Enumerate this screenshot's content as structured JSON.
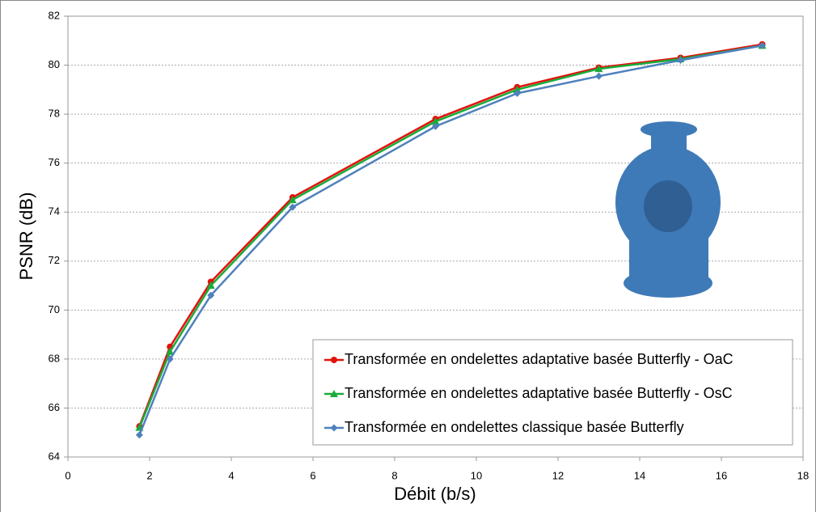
{
  "chart_data": {
    "type": "line",
    "x_label": "Débit (b/s)",
    "y_label": "PSNR (dB)",
    "x": [
      1.75,
      2.5,
      3.5,
      5.5,
      9,
      11,
      13,
      15,
      17
    ],
    "series": [
      {
        "name": "Transformée en ondelettes adaptative basée Butterfly - OaC",
        "color": "#e3120b",
        "marker": "circle",
        "values": [
          65.25,
          68.5,
          71.15,
          74.6,
          77.8,
          79.1,
          79.9,
          80.3,
          80.85
        ]
      },
      {
        "name": "Transformée en ondelettes adaptative basée Butterfly - OsC",
        "color": "#1aab3a",
        "marker": "triangle",
        "values": [
          65.2,
          68.3,
          71.0,
          74.5,
          77.7,
          79.0,
          79.85,
          80.25,
          80.8
        ]
      },
      {
        "name": "Transformée en ondelettes classique basée Butterfly",
        "color": "#4f81bd",
        "marker": "diamond",
        "values": [
          64.9,
          68.0,
          70.6,
          74.2,
          77.5,
          78.85,
          79.55,
          80.2,
          80.8
        ]
      }
    ],
    "xlim": [
      0,
      18
    ],
    "xticks": [
      0,
      2,
      4,
      6,
      8,
      10,
      12,
      14,
      16,
      18
    ],
    "ylim": [
      64,
      82
    ],
    "yticks": [
      64,
      66,
      68,
      70,
      72,
      74,
      76,
      78,
      80,
      82
    ],
    "grid": true,
    "legend": "lower-right"
  }
}
